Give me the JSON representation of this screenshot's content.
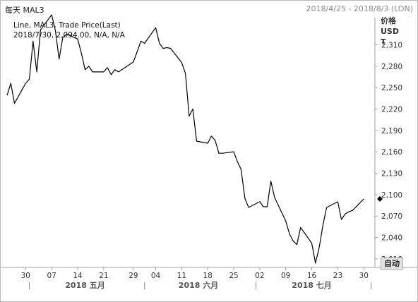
{
  "header": {
    "frequency": "每天",
    "instrument": "MAL3",
    "date_range": "2018/4/25 - 2018/8/3 (LON)"
  },
  "legend": {
    "line1": "Line, MAL3, Trade Price(Last)",
    "line2": "2018/7/30, 2,094.00, N/A, N/A"
  },
  "y_axis_unit": [
    "价格",
    "USD",
    "T"
  ],
  "auto_button": "自动",
  "colors": {
    "line": "#000000",
    "grid": "#cccccc",
    "axis": "#a0a0a0",
    "current_marker": "#000000"
  },
  "chart_data": {
    "type": "line",
    "series": [
      {
        "name": "MAL3",
        "x": [
          "2018-04-25",
          "2018-04-26",
          "2018-04-27",
          "2018-04-30",
          "2018-05-01",
          "2018-05-02",
          "2018-05-03",
          "2018-05-04",
          "2018-05-07",
          "2018-05-08",
          "2018-05-09",
          "2018-05-10",
          "2018-05-11",
          "2018-05-14",
          "2018-05-15",
          "2018-05-16",
          "2018-05-17",
          "2018-05-18",
          "2018-05-21",
          "2018-05-22",
          "2018-05-23",
          "2018-05-24",
          "2018-05-25",
          "2018-05-29",
          "2018-05-30",
          "2018-05-31",
          "2018-06-01",
          "2018-06-04",
          "2018-06-05",
          "2018-06-06",
          "2018-06-07",
          "2018-06-08",
          "2018-06-11",
          "2018-06-12",
          "2018-06-13",
          "2018-06-14",
          "2018-06-15",
          "2018-06-18",
          "2018-06-19",
          "2018-06-20",
          "2018-06-21",
          "2018-06-22",
          "2018-06-25",
          "2018-06-26",
          "2018-06-27",
          "2018-06-28",
          "2018-06-29",
          "2018-07-02",
          "2018-07-03",
          "2018-07-04",
          "2018-07-05",
          "2018-07-06",
          "2018-07-09",
          "2018-07-10",
          "2018-07-11",
          "2018-07-12",
          "2018-07-13",
          "2018-07-16",
          "2018-07-17",
          "2018-07-18",
          "2018-07-19",
          "2018-07-20",
          "2018-07-23",
          "2018-07-24",
          "2018-07-25",
          "2018-07-26",
          "2018-07-27",
          "2018-07-30"
        ],
        "values": [
          2239,
          2256,
          2228,
          2256,
          2262,
          2315,
          2272,
          2331,
          2352,
          2330,
          2290,
          2320,
          2325,
          2318,
          2298,
          2275,
          2280,
          2272,
          2272,
          2278,
          2268,
          2275,
          2272,
          2286,
          2300,
          2315,
          2312,
          2334,
          2312,
          2305,
          2306,
          2305,
          2285,
          2270,
          2210,
          2220,
          2175,
          2172,
          2182,
          2176,
          2158,
          2158,
          2160,
          2146,
          2135,
          2095,
          2082,
          2090,
          2083,
          2083,
          2119,
          2096,
          2063,
          2045,
          2035,
          2030,
          2054,
          2032,
          2004,
          2026,
          2057,
          2082,
          2090,
          2065,
          2073,
          2076,
          2078,
          2094
        ]
      }
    ],
    "ylim": [
      1998,
      2348
    ],
    "y_ticks": [
      2010,
      2040,
      2070,
      2100,
      2130,
      2160,
      2190,
      2220,
      2250,
      2280,
      2310
    ],
    "y_tick_labels": [
      "2,010",
      "2,040",
      "2,070",
      "2,100",
      "2,130",
      "2,160",
      "2,190",
      "2,220",
      "2,250",
      "2,280",
      "2,310"
    ],
    "xlim": [
      "2018-04-25",
      "2018-08-02"
    ],
    "x_ticks": [
      "2018-04-30",
      "2018-05-07",
      "2018-05-14",
      "2018-05-21",
      "2018-05-29",
      "2018-06-04",
      "2018-06-11",
      "2018-06-18",
      "2018-06-25",
      "2018-07-02",
      "2018-07-09",
      "2018-07-16",
      "2018-07-23",
      "2018-07-30"
    ],
    "x_tick_labels": [
      "30",
      "07",
      "14",
      "21",
      "29",
      "04",
      "11",
      "18",
      "25",
      "02",
      "09",
      "16",
      "23",
      "30"
    ],
    "months": [
      {
        "label": "2018 五月",
        "start": "2018-05-01",
        "end": "2018-05-31"
      },
      {
        "label": "2018 六月",
        "start": "2018-06-01",
        "end": "2018-06-30"
      },
      {
        "label": "2018 七月",
        "start": "2018-07-01",
        "end": "2018-07-31"
      }
    ],
    "current_value_marker": 2094,
    "grid": false,
    "legend": "top-left"
  }
}
